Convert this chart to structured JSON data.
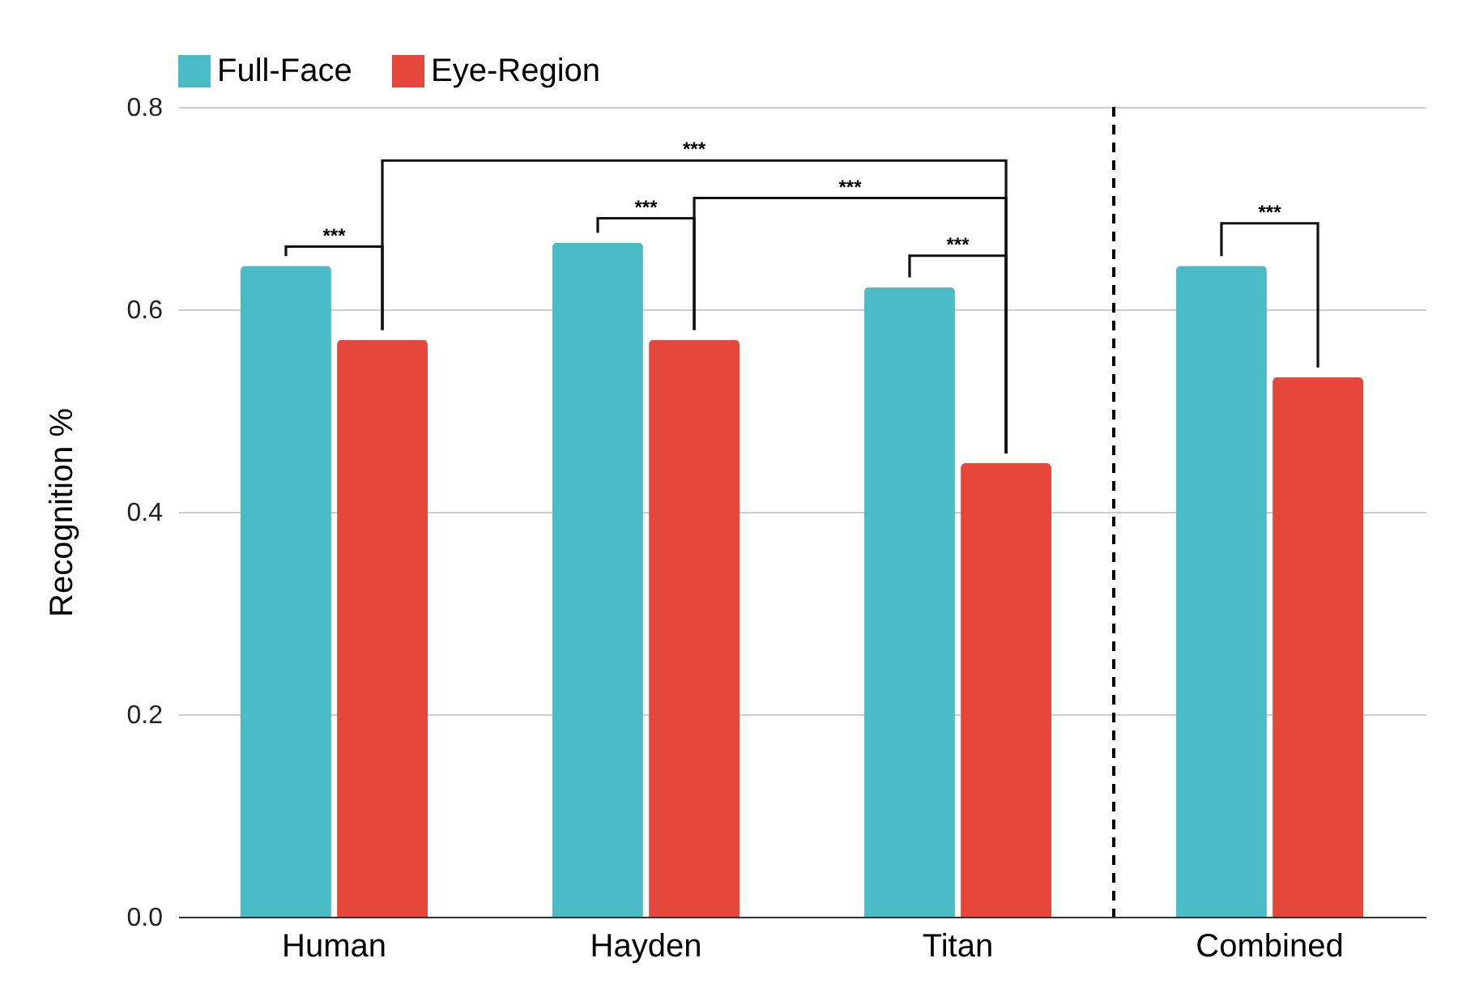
{
  "chart_data": {
    "type": "bar",
    "ylabel": "Recognition %",
    "categories": [
      "Human",
      "Hayden",
      "Titan",
      "Combined"
    ],
    "series": [
      {
        "name": "Full-Face",
        "color": "#4bbbc5",
        "values": [
          0.643,
          0.666,
          0.622,
          0.643
        ]
      },
      {
        "name": "Eye-Region",
        "color": "#e5473a",
        "values": [
          0.57,
          0.57,
          0.448,
          0.533
        ]
      }
    ],
    "ylim": [
      0,
      0.8
    ],
    "yticks": [
      {
        "value": 0,
        "label": "0.0"
      },
      {
        "value": 0.2,
        "label": "0.2"
      },
      {
        "value": 0.4,
        "label": "0.4"
      },
      {
        "value": 0.6,
        "label": "0.6"
      },
      {
        "value": 0.8,
        "label": "0.8"
      }
    ],
    "grid": "y",
    "legend": "top",
    "ref_lines": [
      {
        "axis": "x",
        "value": "Combined",
        "line_style": "dashed",
        "color": "#000000"
      }
    ],
    "annotations": [
      "***",
      "***",
      "***",
      "***",
      "***",
      "***"
    ]
  }
}
